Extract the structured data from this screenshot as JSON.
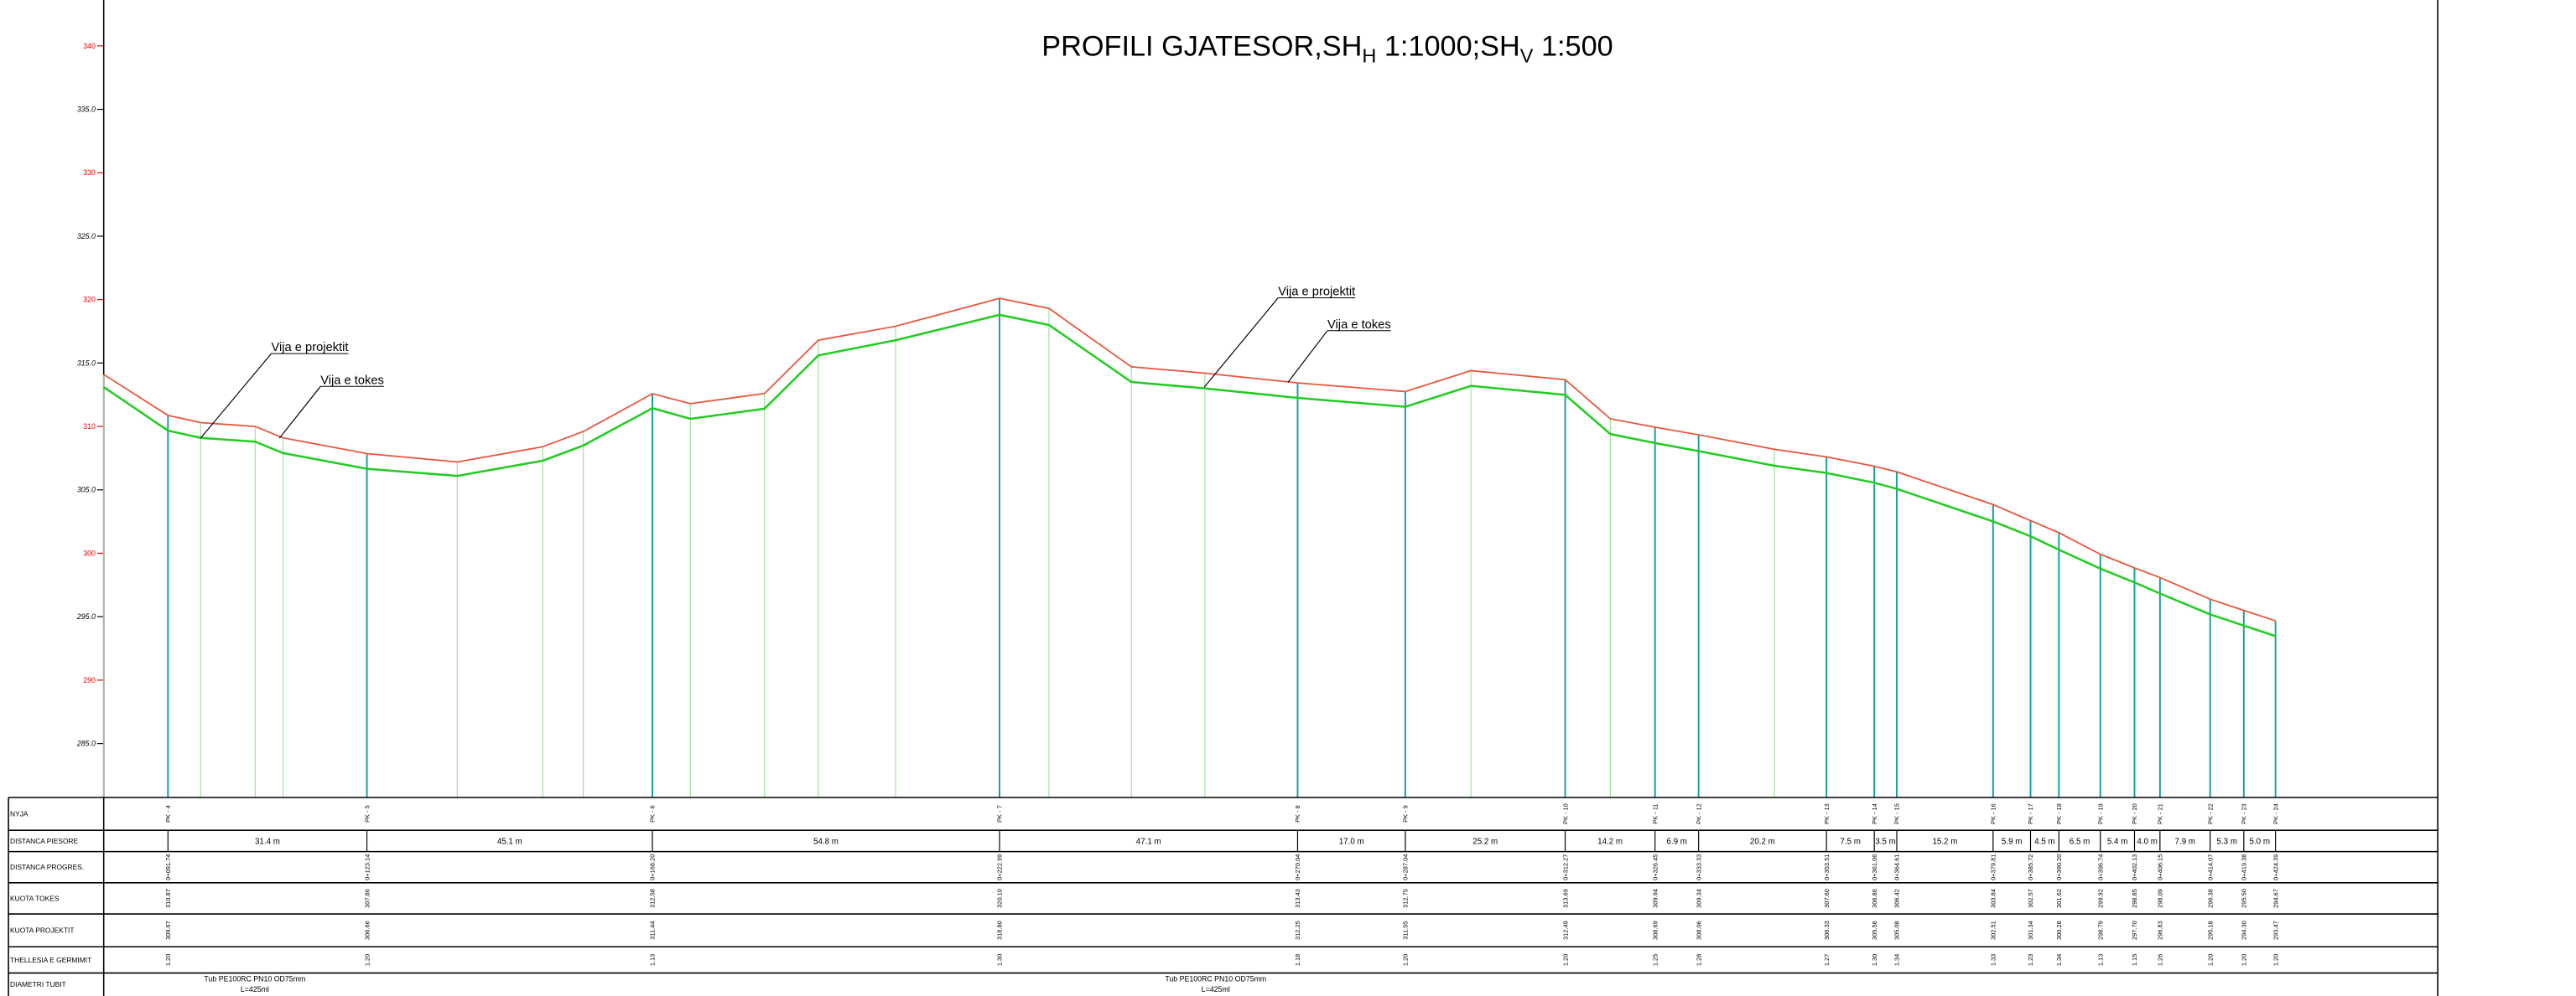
{
  "title": [
    "PROFILI GJATESOR,SH",
    "H",
    " 1:1000;SH",
    "V",
    " 1:500"
  ],
  "axis": {
    "ylim": [
      280.75,
      343.62
    ],
    "yticks": [
      340,
      {
        "value": 335,
        "label": "335.0"
      },
      330,
      {
        "value": 325,
        "label": "325.0"
      },
      320,
      {
        "value": 315,
        "label": "315.0"
      },
      310,
      {
        "value": 305,
        "label": "305.0"
      },
      300,
      {
        "value": 295,
        "label": "295.0"
      },
      290,
      {
        "value": 285,
        "label": "285.0"
      }
    ],
    "ytick_colors": [
      "#e00000",
      "#000000",
      "#e00000",
      "#000000",
      "#e00000",
      "#000000",
      "#e00000",
      "#000000",
      "#e00000",
      "#000000",
      "#e00000",
      "#000000"
    ],
    "xlim": [
      81.6,
      450.0
    ]
  },
  "colors": {
    "ground": "#e8553a",
    "project": "#22cc22",
    "hatch": "#9be39b",
    "station": "#1a9e9e"
  },
  "profile": {
    "chainage": [
      81.6,
      91.74,
      96.9,
      105.5,
      109.9,
      123.14,
      137.4,
      150.9,
      157.3,
      168.2,
      174.2,
      185.9,
      194.4,
      206.6,
      222.99,
      230.8,
      243.8,
      255.4,
      270.04,
      287.04,
      297.4,
      312.27,
      319.4,
      326.45,
      333.33,
      345.3,
      353.51,
      361.06,
      364.61,
      379.81,
      385.72,
      390.2,
      396.74,
      402.13,
      406.15,
      414.07,
      419.38,
      424.39
    ],
    "ground": [
      314.1,
      310.87,
      310.3,
      310.0,
      309.1,
      307.86,
      307.2,
      308.4,
      309.6,
      312.58,
      311.8,
      312.6,
      316.8,
      317.9,
      320.1,
      319.3,
      314.7,
      314.2,
      313.43,
      312.75,
      314.4,
      313.69,
      310.6,
      309.94,
      309.34,
      308.2,
      307.6,
      306.86,
      306.42,
      303.84,
      302.57,
      301.62,
      299.92,
      298.85,
      298.09,
      296.38,
      295.5,
      294.67
    ],
    "project": [
      313.1,
      309.67,
      309.1,
      308.8,
      307.9,
      306.66,
      306.1,
      307.3,
      308.5,
      311.44,
      310.6,
      311.4,
      315.6,
      316.8,
      318.8,
      318.0,
      313.5,
      313.0,
      312.25,
      311.55,
      313.2,
      312.49,
      309.4,
      308.69,
      308.06,
      306.9,
      306.33,
      305.56,
      305.08,
      302.51,
      301.34,
      300.28,
      298.79,
      297.7,
      296.83,
      295.18,
      294.3,
      293.47
    ]
  },
  "annotations": [
    {
      "project": "Vija e projektit",
      "ground": "Vija e tokes"
    },
    {
      "project": "Vija e projektit",
      "ground": "Vija e tokes"
    }
  ],
  "table": {
    "row_labels": [
      "NYJA",
      "DISTANCA PIESORE",
      "DISTANCA PROGRES.",
      "KUOTA TOKES",
      "KUOTA PROJEKTIT",
      "THELLESIA E GERMIMIT",
      "DIAMETRI TUBIT"
    ],
    "stations": {
      "names": [
        "PK - 4",
        "PK - 5",
        "PK - 6",
        "PK - 7",
        "PK - 8",
        "PK - 9",
        "PK - 10",
        "PK - 11",
        "PK - 12",
        "PK - 13",
        "PK - 14",
        "PK - 15",
        "PK - 16",
        "PK - 17",
        "PK - 18",
        "PK - 19",
        "PK - 20",
        "PK - 21",
        "PK - 22",
        "PK - 23",
        "PK - 24"
      ],
      "chainage": [
        91.74,
        123.14,
        168.2,
        222.99,
        270.04,
        287.04,
        312.27,
        326.45,
        333.33,
        353.51,
        361.06,
        364.61,
        379.81,
        385.72,
        390.2,
        396.74,
        402.13,
        406.15,
        414.07,
        419.38,
        424.39
      ],
      "chainage_labels": [
        "0+091.74",
        "0+123.14",
        "0+168.20",
        "0+222.99",
        "0+270.04",
        "0+287.04",
        "0+312.27",
        "0+326.45",
        "0+333.33",
        "0+353.51",
        "0+361.06",
        "0+364.61",
        "0+379.81",
        "0+385.72",
        "0+390.20",
        "0+396.74",
        "0+402.13",
        "0+406.15",
        "0+414.07",
        "0+419.38",
        "0+424.39"
      ],
      "ground": [
        "310.87",
        "307.86",
        "312.58",
        "320.10",
        "313.43",
        "312.75",
        "313.69",
        "309.94",
        "309.34",
        "307.60",
        "306.86",
        "306.42",
        "303.84",
        "302.57",
        "301.62",
        "299.92",
        "298.85",
        "298.09",
        "296.38",
        "295.50",
        "294.67"
      ],
      "project": [
        "309.67",
        "306.66",
        "311.44",
        "318.80",
        "312.25",
        "311.55",
        "312.49",
        "308.69",
        "308.06",
        "306.33",
        "305.56",
        "305.08",
        "302.51",
        "301.34",
        "300.28",
        "298.79",
        "297.70",
        "296.83",
        "295.18",
        "294.30",
        "293.47"
      ],
      "depth": [
        "1.20",
        "1.20",
        "1.13",
        "1.30",
        "1.18",
        "1.20",
        "1.20",
        "1.25",
        "1.28",
        "1.27",
        "1.30",
        "1.34",
        "1.33",
        "1.23",
        "1.34",
        "1.13",
        "1.15",
        "1.26",
        "1.20",
        "1.20",
        "1.20"
      ]
    },
    "distances": [
      "31.4 m",
      "45.1 m",
      "54.8 m",
      "47.1 m",
      "17.0 m",
      "25.2 m",
      "14.2 m",
      "6.9 m",
      "20.2 m",
      "7.5 m",
      "3.5 m",
      "15.2 m",
      "5.9 m",
      "4.5 m",
      "6.5 m",
      "5.4 m",
      "4.0 m",
      "7.9 m",
      "5.3 m",
      "5.0 m"
    ],
    "pipes": [
      {
        "line1": "Tub PE100RC PN10 OD75mm",
        "line2": "L=425ml"
      },
      {
        "line1": "Tub PE100RC PN10 OD75mm",
        "line2": "L=425ml"
      }
    ]
  }
}
